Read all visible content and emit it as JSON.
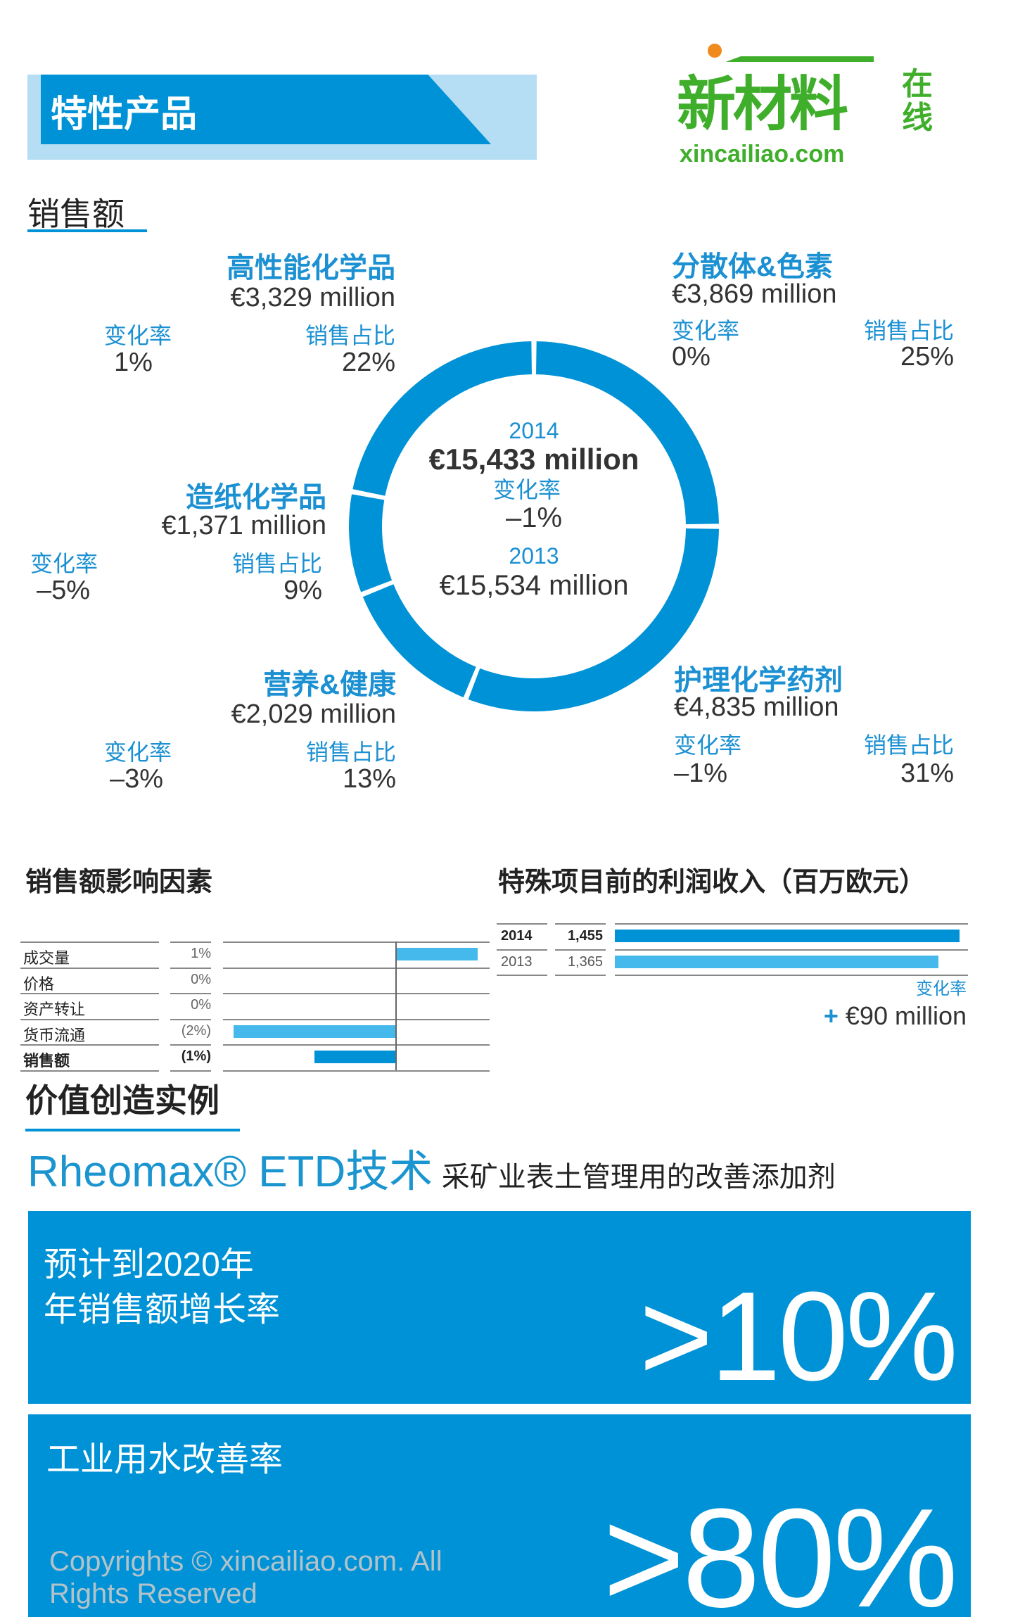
{
  "header": {
    "title": "特性产品"
  },
  "logo": {
    "name": "新材料",
    "side": "在线",
    "url_text": "xincailiao.com"
  },
  "sales": {
    "heading": "销售额",
    "center": {
      "year_2014": "2014",
      "value_2014": "€15,433 million",
      "change_label": "变化率",
      "change": "–1%",
      "year_2013": "2013",
      "value_2013": "€15,534 million"
    },
    "segments": [
      {
        "name": "分散体&色素",
        "amount": "€3,869 million",
        "change_label": "变化率",
        "change": "0%",
        "share_label": "销售占比",
        "share": "25%",
        "share_value": 25
      },
      {
        "name": "护理化学药剂",
        "amount": "€4,835 million",
        "change_label": "变化率",
        "change": "–1%",
        "share_label": "销售占比",
        "share": "31%",
        "share_value": 31
      },
      {
        "name": "营养&健康",
        "amount": "€2,029 million",
        "change_label": "变化率",
        "change": "–3%",
        "share_label": "销售占比",
        "share": "13%",
        "share_value": 13
      },
      {
        "name": "造纸化学品",
        "amount": "€1,371 million",
        "change_label": "变化率",
        "change": "–5%",
        "share_label": "销售占比",
        "share": "9%",
        "share_value": 9
      },
      {
        "name": "高性能化学品",
        "amount": "€3,329 million",
        "change_label": "变化率",
        "change": "1%",
        "share_label": "销售占比",
        "share": "22%",
        "share_value": 22
      }
    ]
  },
  "factors": {
    "heading": "销售额影响因素",
    "rows": [
      {
        "label": "成交量",
        "value": "1%",
        "num": 1
      },
      {
        "label": "价格",
        "value": "0%",
        "num": 0
      },
      {
        "label": "资产转让",
        "value": "0%",
        "num": 0
      },
      {
        "label": "货币流通",
        "value": "(2%)",
        "num": -2
      },
      {
        "label": "销售额",
        "value": "(1%)",
        "num": -1
      }
    ]
  },
  "income": {
    "heading": "特殊项目前的利润收入（百万欧元）",
    "rows": [
      {
        "year": "2014",
        "value": "1,455",
        "num": 1455
      },
      {
        "year": "2013",
        "value": "1,365",
        "num": 1365
      }
    ],
    "change_label": "变化率",
    "change_sign": "+",
    "change": "€90 million"
  },
  "value": {
    "heading": "价值创造实例",
    "product": "Rheomax® ETD技术",
    "subtitle": "采矿业表土管理用的改善添加剂",
    "box1": {
      "line1": "预计到2020年",
      "line2": "年销售额增长率",
      "big": ">10%"
    },
    "box2": {
      "line1": "工业用水改善率",
      "big": ">80%"
    }
  },
  "footer": {
    "copyright": "Copyrights © xincailiao.com. All Rights Reserved"
  },
  "watermark": "xincailiao.com",
  "colors": {
    "dark": "#0092d6",
    "light": "#45b9ec",
    "band": "#b5ddf3"
  }
}
